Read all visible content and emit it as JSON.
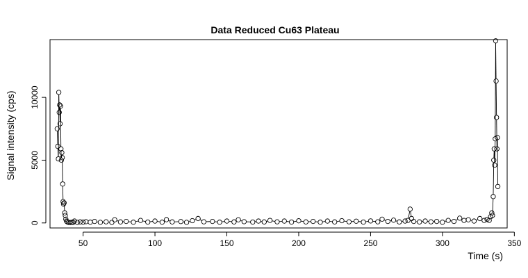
{
  "chart_data": {
    "type": "line",
    "title": "Data Reduced Cu63 Plateau",
    "xlabel": "Time (s)",
    "ylabel": "Signal intensity (cps)",
    "xlim": [
      27,
      345
    ],
    "ylim": [
      -400,
      14600
    ],
    "xticks": [
      50,
      100,
      150,
      200,
      250,
      300,
      350
    ],
    "yticks": [
      0,
      5000,
      10000
    ],
    "xtick_labels": [
      "50",
      "100",
      "150",
      "200",
      "250",
      "300",
      "350"
    ],
    "ytick_labels": [
      "0",
      "5000",
      "10000"
    ],
    "grid": false,
    "marker": "open-circle",
    "line_color": "#000000",
    "marker_color": "#000000",
    "series": [
      {
        "points": [
          [
            32.0,
            7500
          ],
          [
            32.4,
            6100
          ],
          [
            32.8,
            5100
          ],
          [
            33.1,
            10400
          ],
          [
            33.4,
            8800
          ],
          [
            33.7,
            9400
          ],
          [
            34.0,
            7900
          ],
          [
            34.3,
            9300
          ],
          [
            34.6,
            5900
          ],
          [
            34.9,
            5000
          ],
          [
            35.2,
            5600
          ],
          [
            35.5,
            5200
          ],
          [
            35.8,
            3100
          ],
          [
            36.1,
            1700
          ],
          [
            36.4,
            1500
          ],
          [
            36.8,
            1600
          ],
          [
            37.2,
            800
          ],
          [
            37.6,
            600
          ],
          [
            38.0,
            300
          ],
          [
            38.5,
            150
          ],
          [
            39.0,
            80
          ],
          [
            40.0,
            40
          ],
          [
            41.0,
            30
          ],
          [
            42.0,
            50
          ],
          [
            43.0,
            40
          ],
          [
            44.0,
            150
          ],
          [
            46.0,
            40
          ],
          [
            48.0,
            80
          ],
          [
            50.0,
            60
          ],
          [
            52.0,
            100
          ],
          [
            55.0,
            60
          ],
          [
            58.0,
            120
          ],
          [
            62.0,
            50
          ],
          [
            66.0,
            90
          ],
          [
            70.0,
            40
          ],
          [
            72.0,
            250
          ],
          [
            76.0,
            80
          ],
          [
            80.0,
            120
          ],
          [
            85.0,
            60
          ],
          [
            90.0,
            200
          ],
          [
            95.0,
            70
          ],
          [
            100.0,
            150
          ],
          [
            105.0,
            60
          ],
          [
            108.0,
            260
          ],
          [
            112.0,
            80
          ],
          [
            118.0,
            110
          ],
          [
            122.0,
            50
          ],
          [
            126.0,
            180
          ],
          [
            130.0,
            350
          ],
          [
            134.0,
            90
          ],
          [
            140.0,
            120
          ],
          [
            145.0,
            60
          ],
          [
            150.0,
            150
          ],
          [
            155.0,
            80
          ],
          [
            158.0,
            250
          ],
          [
            162.0,
            100
          ],
          [
            168.0,
            70
          ],
          [
            172.0,
            150
          ],
          [
            176.0,
            80
          ],
          [
            180.0,
            200
          ],
          [
            185.0,
            90
          ],
          [
            190.0,
            150
          ],
          [
            195.0,
            70
          ],
          [
            200.0,
            170
          ],
          [
            205.0,
            80
          ],
          [
            210.0,
            120
          ],
          [
            215.0,
            60
          ],
          [
            220.0,
            150
          ],
          [
            225.0,
            80
          ],
          [
            230.0,
            180
          ],
          [
            235.0,
            90
          ],
          [
            240.0,
            140
          ],
          [
            245.0,
            70
          ],
          [
            250.0,
            160
          ],
          [
            255.0,
            90
          ],
          [
            258.0,
            300
          ],
          [
            262.0,
            120
          ],
          [
            266.0,
            220
          ],
          [
            270.0,
            80
          ],
          [
            274.0,
            150
          ],
          [
            276.0,
            200
          ],
          [
            277.5,
            1100
          ],
          [
            278.5,
            350
          ],
          [
            280.0,
            120
          ],
          [
            284.0,
            80
          ],
          [
            288.0,
            150
          ],
          [
            292.0,
            90
          ],
          [
            296.0,
            120
          ],
          [
            300.0,
            60
          ],
          [
            304.0,
            200
          ],
          [
            308.0,
            120
          ],
          [
            312.0,
            380
          ],
          [
            315.0,
            200
          ],
          [
            318.0,
            250
          ],
          [
            322.0,
            150
          ],
          [
            326.0,
            350
          ],
          [
            329.0,
            200
          ],
          [
            331.0,
            280
          ],
          [
            332.5,
            200
          ],
          [
            333.5,
            500
          ],
          [
            334.3,
            800
          ],
          [
            334.8,
            600
          ],
          [
            335.3,
            2100
          ],
          [
            335.7,
            5000
          ],
          [
            336.0,
            5900
          ],
          [
            336.3,
            4600
          ],
          [
            336.7,
            6700
          ],
          [
            337.0,
            14500
          ],
          [
            337.3,
            11300
          ],
          [
            337.6,
            8400
          ],
          [
            337.9,
            5900
          ],
          [
            338.2,
            6800
          ],
          [
            338.5,
            2900
          ]
        ]
      }
    ]
  }
}
